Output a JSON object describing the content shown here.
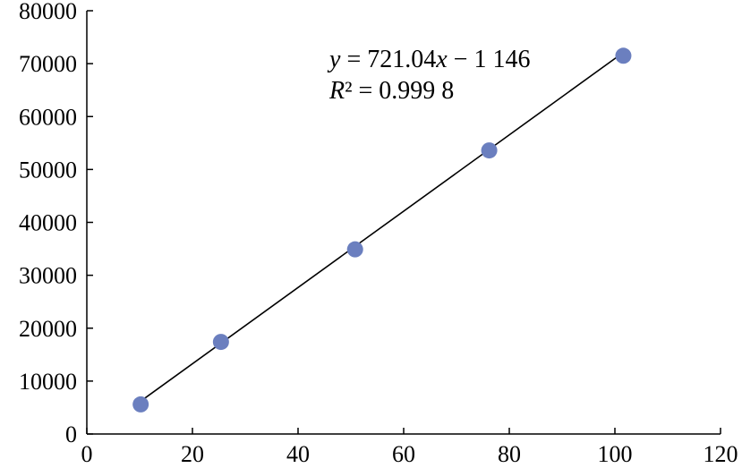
{
  "chart_data": {
    "type": "scatter",
    "title": "",
    "xlabel": "",
    "ylabel": "",
    "xlim": [
      0,
      120
    ],
    "ylim": [
      0,
      80000
    ],
    "x_ticks": [
      "0",
      "20",
      "40",
      "60",
      "80",
      "100",
      "120"
    ],
    "y_ticks": [
      "0",
      "10000",
      "20000",
      "30000",
      "40000",
      "50000",
      "60000",
      "70000",
      "80000"
    ],
    "grid": false,
    "legend": "none",
    "series": [
      {
        "x": [
          10.2,
          25.4,
          50.8,
          76.2,
          101.6
        ],
        "y": [
          5600,
          17400,
          34900,
          53600,
          71500
        ]
      }
    ],
    "trendline": {
      "type": "linear",
      "slope": 721.04,
      "intercept": -1146,
      "x_range": [
        10.2,
        101.6
      ]
    },
    "annotations": {
      "equation": {
        "lhs": "y",
        "middle": " = 721.04",
        "var": "x",
        "rest": " − 1 146"
      },
      "r2": {
        "var": "R",
        "rest": "² = 0.999 8"
      }
    },
    "colors": {
      "points": "#6b7fbf",
      "line": "#000000"
    }
  }
}
